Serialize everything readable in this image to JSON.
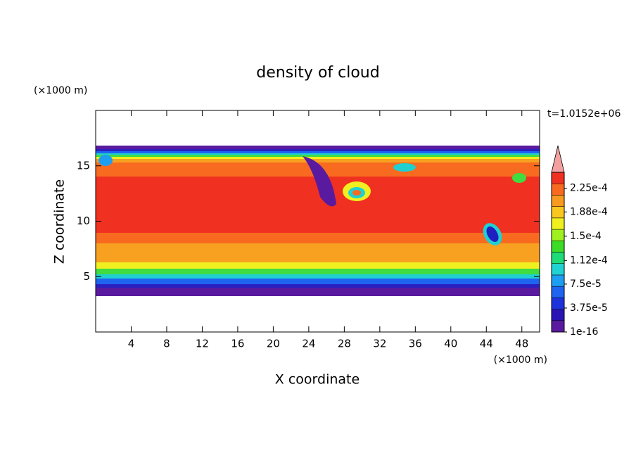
{
  "chart_data": {
    "type": "contour",
    "title": "density of cloud",
    "x_label": "X coordinate",
    "y_label": "Z coordinate",
    "x_unit": "(×1000 m)",
    "y_unit": "(×1000 m)",
    "time_label": "t=1.0152e+06",
    "xlim": [
      0,
      50
    ],
    "xticks": [
      4,
      8,
      12,
      16,
      20,
      24,
      28,
      32,
      36,
      40,
      44,
      48
    ],
    "ylim": [
      0,
      20
    ],
    "yticks": [
      5,
      10,
      15
    ],
    "colorbar": {
      "lim": [
        1e-16,
        0.00025
      ],
      "ticks": [
        {
          "value": 1e-16,
          "label": "1e-16"
        },
        {
          "value": 3.75e-05,
          "label": "3.75e-5"
        },
        {
          "value": 7.5e-05,
          "label": "7.5e-5"
        },
        {
          "value": 0.000112,
          "label": "1.12e-4"
        },
        {
          "value": 0.00015,
          "label": "1.5e-4"
        },
        {
          "value": 0.000188,
          "label": "1.88e-4"
        },
        {
          "value": 0.000225,
          "label": "2.25e-4"
        }
      ],
      "colors": [
        "#5a1aa0",
        "#2a14b4",
        "#1e32dc",
        "#1e64f0",
        "#1e9ef0",
        "#20d2d2",
        "#20dc78",
        "#3cdc28",
        "#a0f020",
        "#f0f020",
        "#f8c820",
        "#f89a20",
        "#f86a20",
        "#f03020"
      ],
      "extend_color": "#f4a0a0"
    }
  }
}
